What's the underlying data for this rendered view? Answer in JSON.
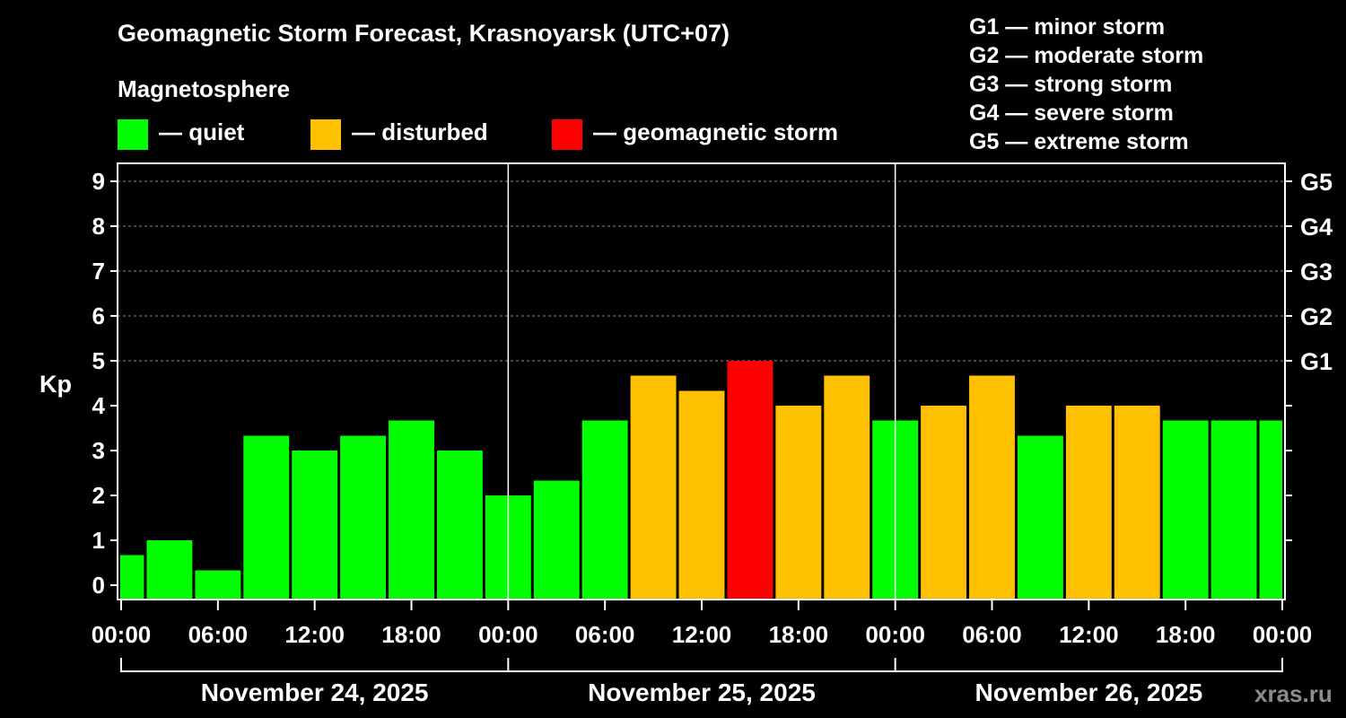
{
  "header": {
    "title": "Geomagnetic Storm Forecast, Krasnoyarsk (UTC+07)",
    "magnetosphere_label": "Magnetosphere"
  },
  "legend": [
    {
      "label": "— quiet",
      "color": "#00ff00"
    },
    {
      "label": "— disturbed",
      "color": "#ffc000"
    },
    {
      "label": "— geomagnetic storm",
      "color": "#ff0000"
    }
  ],
  "g_scale": [
    "G1 — minor storm",
    "G2 — moderate storm",
    "G3 — strong storm",
    "G4 — severe storm",
    "G5 — extreme storm"
  ],
  "watermark": "xras.ru",
  "chart_data": {
    "type": "bar",
    "ylabel": "Kp",
    "ylim": [
      0,
      9
    ],
    "grid": true,
    "y_ticks": [
      "0",
      "1",
      "2",
      "3",
      "4",
      "5",
      "6",
      "7",
      "8",
      "9"
    ],
    "right_ticks": [
      {
        "kp": 5,
        "label": "G1"
      },
      {
        "kp": 6,
        "label": "G2"
      },
      {
        "kp": 7,
        "label": "G3"
      },
      {
        "kp": 8,
        "label": "G4"
      },
      {
        "kp": 9,
        "label": "G5"
      }
    ],
    "x_tick_labels": [
      "00:00",
      "06:00",
      "12:00",
      "18:00",
      "00:00",
      "06:00",
      "12:00",
      "18:00",
      "00:00",
      "06:00",
      "12:00",
      "18:00",
      "00:00"
    ],
    "days": [
      "November 24, 2025",
      "November 25, 2025",
      "November 26, 2025"
    ],
    "hours_span": 72,
    "bars": [
      {
        "start_hour": 0,
        "kp": 0.67,
        "status": "quiet"
      },
      {
        "start_hour": 3,
        "kp": 1.0,
        "status": "quiet"
      },
      {
        "start_hour": 6,
        "kp": 0.33,
        "status": "quiet"
      },
      {
        "start_hour": 9,
        "kp": 3.33,
        "status": "quiet"
      },
      {
        "start_hour": 12,
        "kp": 3.0,
        "status": "quiet"
      },
      {
        "start_hour": 15,
        "kp": 3.33,
        "status": "quiet"
      },
      {
        "start_hour": 18,
        "kp": 3.67,
        "status": "quiet"
      },
      {
        "start_hour": 21,
        "kp": 3.0,
        "status": "quiet"
      },
      {
        "start_hour": 24,
        "kp": 2.0,
        "status": "quiet"
      },
      {
        "start_hour": 27,
        "kp": 2.33,
        "status": "quiet"
      },
      {
        "start_hour": 30,
        "kp": 3.67,
        "status": "quiet"
      },
      {
        "start_hour": 33,
        "kp": 4.67,
        "status": "disturbed"
      },
      {
        "start_hour": 36,
        "kp": 4.33,
        "status": "disturbed"
      },
      {
        "start_hour": 39,
        "kp": 5.0,
        "status": "storm"
      },
      {
        "start_hour": 42,
        "kp": 4.0,
        "status": "disturbed"
      },
      {
        "start_hour": 45,
        "kp": 4.67,
        "status": "disturbed"
      },
      {
        "start_hour": 48,
        "kp": 3.67,
        "status": "quiet"
      },
      {
        "start_hour": 51,
        "kp": 4.0,
        "status": "disturbed"
      },
      {
        "start_hour": 54,
        "kp": 4.67,
        "status": "disturbed"
      },
      {
        "start_hour": 57,
        "kp": 3.33,
        "status": "quiet"
      },
      {
        "start_hour": 60,
        "kp": 4.0,
        "status": "disturbed"
      },
      {
        "start_hour": 63,
        "kp": 4.0,
        "status": "disturbed"
      },
      {
        "start_hour": 66,
        "kp": 3.67,
        "status": "quiet"
      },
      {
        "start_hour": 69,
        "kp": 3.67,
        "status": "quiet"
      },
      {
        "start_hour": 72,
        "kp": 3.67,
        "status": "quiet"
      }
    ],
    "status_colors": {
      "quiet": "#00ff00",
      "disturbed": "#ffc000",
      "storm": "#ff0000"
    }
  }
}
